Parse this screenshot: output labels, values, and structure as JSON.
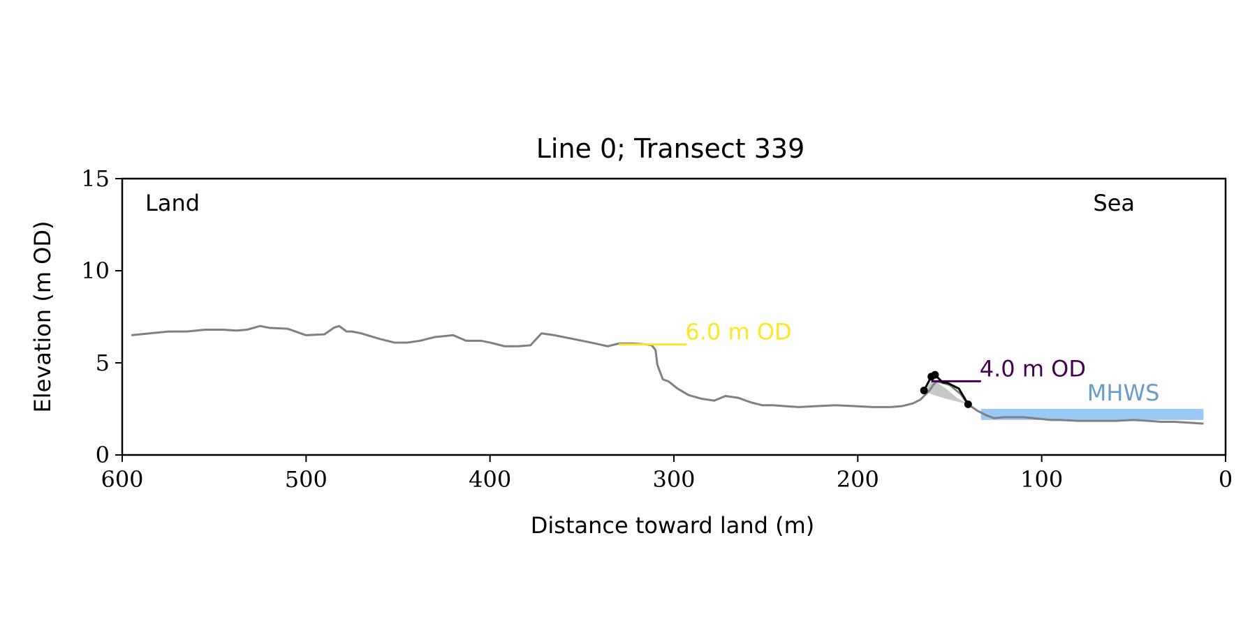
{
  "chart_data": {
    "type": "line",
    "title": "Line 0; Transect 339",
    "xlabel": "Distance toward land (m)",
    "ylabel": "Elevation (m OD)",
    "xlim": [
      600,
      0
    ],
    "ylim": [
      0,
      15
    ],
    "x_ticks": [
      600,
      500,
      400,
      300,
      200,
      100,
      0
    ],
    "y_ticks": [
      0,
      5,
      10,
      15
    ],
    "corner_labels": {
      "left": "Land",
      "right": "Sea"
    },
    "series": [
      {
        "color": "#808080",
        "x": [
          595,
          585,
          575,
          565,
          555,
          545,
          538,
          532,
          525,
          520,
          510,
          500,
          490,
          485,
          482,
          478,
          475,
          470,
          460,
          452,
          445,
          438,
          430,
          420,
          413,
          405,
          400,
          392,
          385,
          378,
          372,
          365,
          355,
          345,
          336,
          330,
          322,
          315,
          312,
          310,
          309,
          306,
          303,
          298,
          292,
          285,
          278,
          272,
          265,
          258,
          252,
          246,
          240,
          232,
          222,
          212,
          202,
          192,
          182,
          176,
          170,
          166,
          163,
          161,
          159,
          157,
          150,
          144,
          140,
          135,
          130,
          126,
          120,
          110,
          100,
          95,
          90,
          80,
          70,
          60,
          50,
          42,
          35,
          28,
          20,
          12
        ],
        "y": [
          6.5,
          6.6,
          6.7,
          6.7,
          6.8,
          6.8,
          6.75,
          6.8,
          7.0,
          6.9,
          6.85,
          6.5,
          6.55,
          6.9,
          7.0,
          6.7,
          6.7,
          6.6,
          6.3,
          6.1,
          6.1,
          6.2,
          6.4,
          6.5,
          6.2,
          6.2,
          6.1,
          5.9,
          5.9,
          5.95,
          6.6,
          6.5,
          6.3,
          6.1,
          5.9,
          6.05,
          6.05,
          6.0,
          5.95,
          5.7,
          4.9,
          4.1,
          4.0,
          3.6,
          3.25,
          3.05,
          2.95,
          3.2,
          3.1,
          2.85,
          2.7,
          2.7,
          2.65,
          2.6,
          2.65,
          2.7,
          2.65,
          2.6,
          2.6,
          2.65,
          2.8,
          3.0,
          3.3,
          3.5,
          3.8,
          4.0,
          3.8,
          3.3,
          2.75,
          2.4,
          2.15,
          2.0,
          2.05,
          2.05,
          1.95,
          1.9,
          1.9,
          1.85,
          1.85,
          1.85,
          1.9,
          1.85,
          1.8,
          1.8,
          1.75,
          1.7
        ]
      }
    ],
    "levels": [
      {
        "label": "6.0 m OD",
        "y": 6.0,
        "x_from": 330,
        "x_to": 293,
        "color": "#fde725"
      },
      {
        "label": "4.0 m OD",
        "y": 4.0,
        "x_from": 160,
        "x_to": 133,
        "color": "#440154"
      }
    ],
    "mhws": {
      "label": "MHWS",
      "y": 2.5,
      "x_from": 133,
      "x_to": 12,
      "color": "#99c9f5",
      "label_color": "#6a9bc9"
    },
    "feature_points": {
      "color": "#000000",
      "x": [
        164,
        160,
        158,
        154,
        151,
        145,
        140
      ],
      "y": [
        3.5,
        4.25,
        4.35,
        3.95,
        3.9,
        3.6,
        2.75
      ],
      "marker_indices": [
        0,
        1,
        2,
        6
      ]
    },
    "feature_fill": {
      "color": "#c8c8c8",
      "x": [
        164,
        162,
        160,
        157,
        152,
        146,
        140
      ],
      "y": [
        3.5,
        3.7,
        4.0,
        3.95,
        3.6,
        3.1,
        2.75
      ],
      "base_y": [
        3.5,
        3.4,
        3.3,
        3.2,
        3.05,
        2.9,
        2.75
      ]
    }
  }
}
